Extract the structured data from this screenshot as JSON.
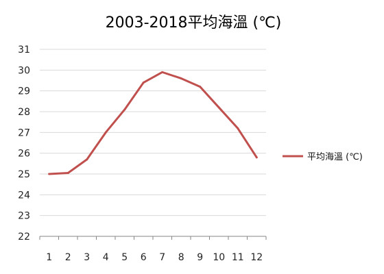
{
  "chart_data": {
    "type": "line",
    "title": "2003-2018平均海溫 (℃)",
    "xlabel": "",
    "ylabel": "",
    "categories": [
      "1",
      "2",
      "3",
      "4",
      "5",
      "6",
      "7",
      "8",
      "9",
      "10",
      "11",
      "12"
    ],
    "series": [
      {
        "name": "平均海溫 (℃)",
        "values": [
          25.0,
          25.05,
          25.7,
          27.0,
          28.1,
          29.4,
          29.9,
          29.6,
          29.2,
          28.2,
          27.2,
          25.8
        ],
        "color": "#C0504D"
      }
    ],
    "ylim": [
      22,
      31
    ],
    "yticks": [
      "22",
      "23",
      "24",
      "25",
      "26",
      "27",
      "28",
      "29",
      "30",
      "31"
    ],
    "grid": true,
    "legend_position": "right"
  }
}
